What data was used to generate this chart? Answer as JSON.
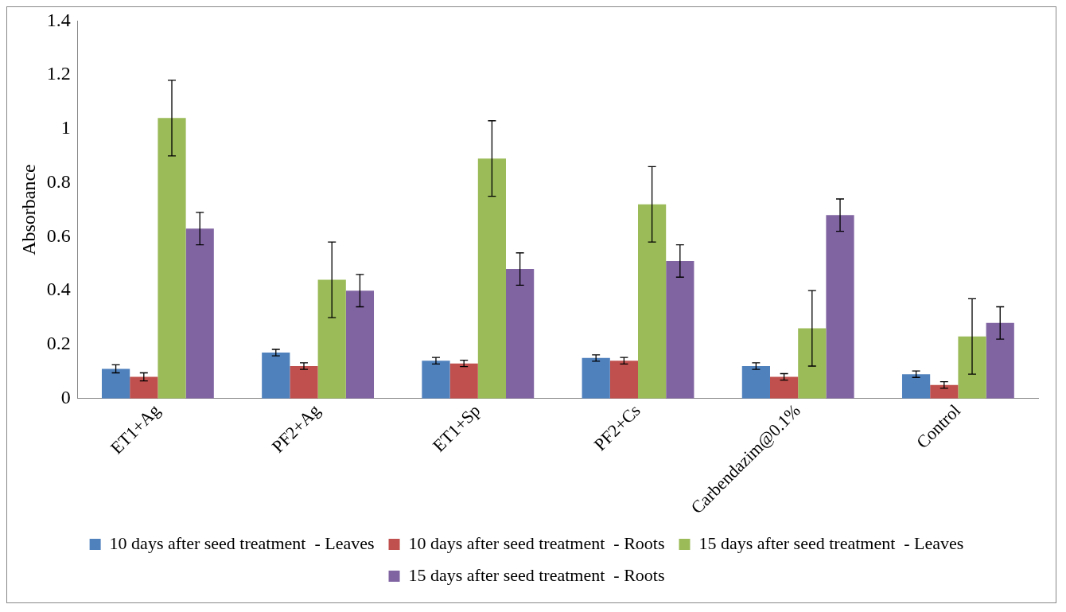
{
  "chart_data": {
    "type": "bar",
    "ylabel": "Absorbance",
    "categories": [
      "ET1+Ag",
      "PF2+Ag",
      "ET1+Sp",
      "PF2+Cs",
      "Carbendazim@0.1%",
      "Control"
    ],
    "series": [
      {
        "name": "10 days after seed treatment  - Leaves",
        "color": "#4f81bd",
        "values": [
          0.11,
          0.17,
          0.14,
          0.15,
          0.12,
          0.09
        ],
        "errors": [
          0.015,
          0.012,
          0.012,
          0.012,
          0.012,
          0.012
        ]
      },
      {
        "name": "10 days after seed treatment  - Roots",
        "color": "#c0504d",
        "values": [
          0.08,
          0.12,
          0.13,
          0.14,
          0.08,
          0.05
        ],
        "errors": [
          0.015,
          0.012,
          0.012,
          0.012,
          0.012,
          0.012
        ]
      },
      {
        "name": "15 days after seed treatment  - Leaves",
        "color": "#9bbb59",
        "values": [
          1.04,
          0.44,
          0.89,
          0.72,
          0.26,
          0.23
        ],
        "errors": [
          0.14,
          0.14,
          0.14,
          0.14,
          0.14,
          0.14
        ]
      },
      {
        "name": "15 days after seed treatment  - Roots",
        "color": "#8064a2",
        "values": [
          0.63,
          0.4,
          0.48,
          0.51,
          0.68,
          0.28
        ],
        "errors": [
          0.06,
          0.06,
          0.06,
          0.06,
          0.06,
          0.06
        ]
      }
    ],
    "ylim": [
      0,
      1.4
    ],
    "yticks": [
      0,
      0.2,
      0.4,
      0.6,
      0.8,
      1,
      1.2,
      1.4
    ],
    "grid": false,
    "legend": "bottom"
  }
}
